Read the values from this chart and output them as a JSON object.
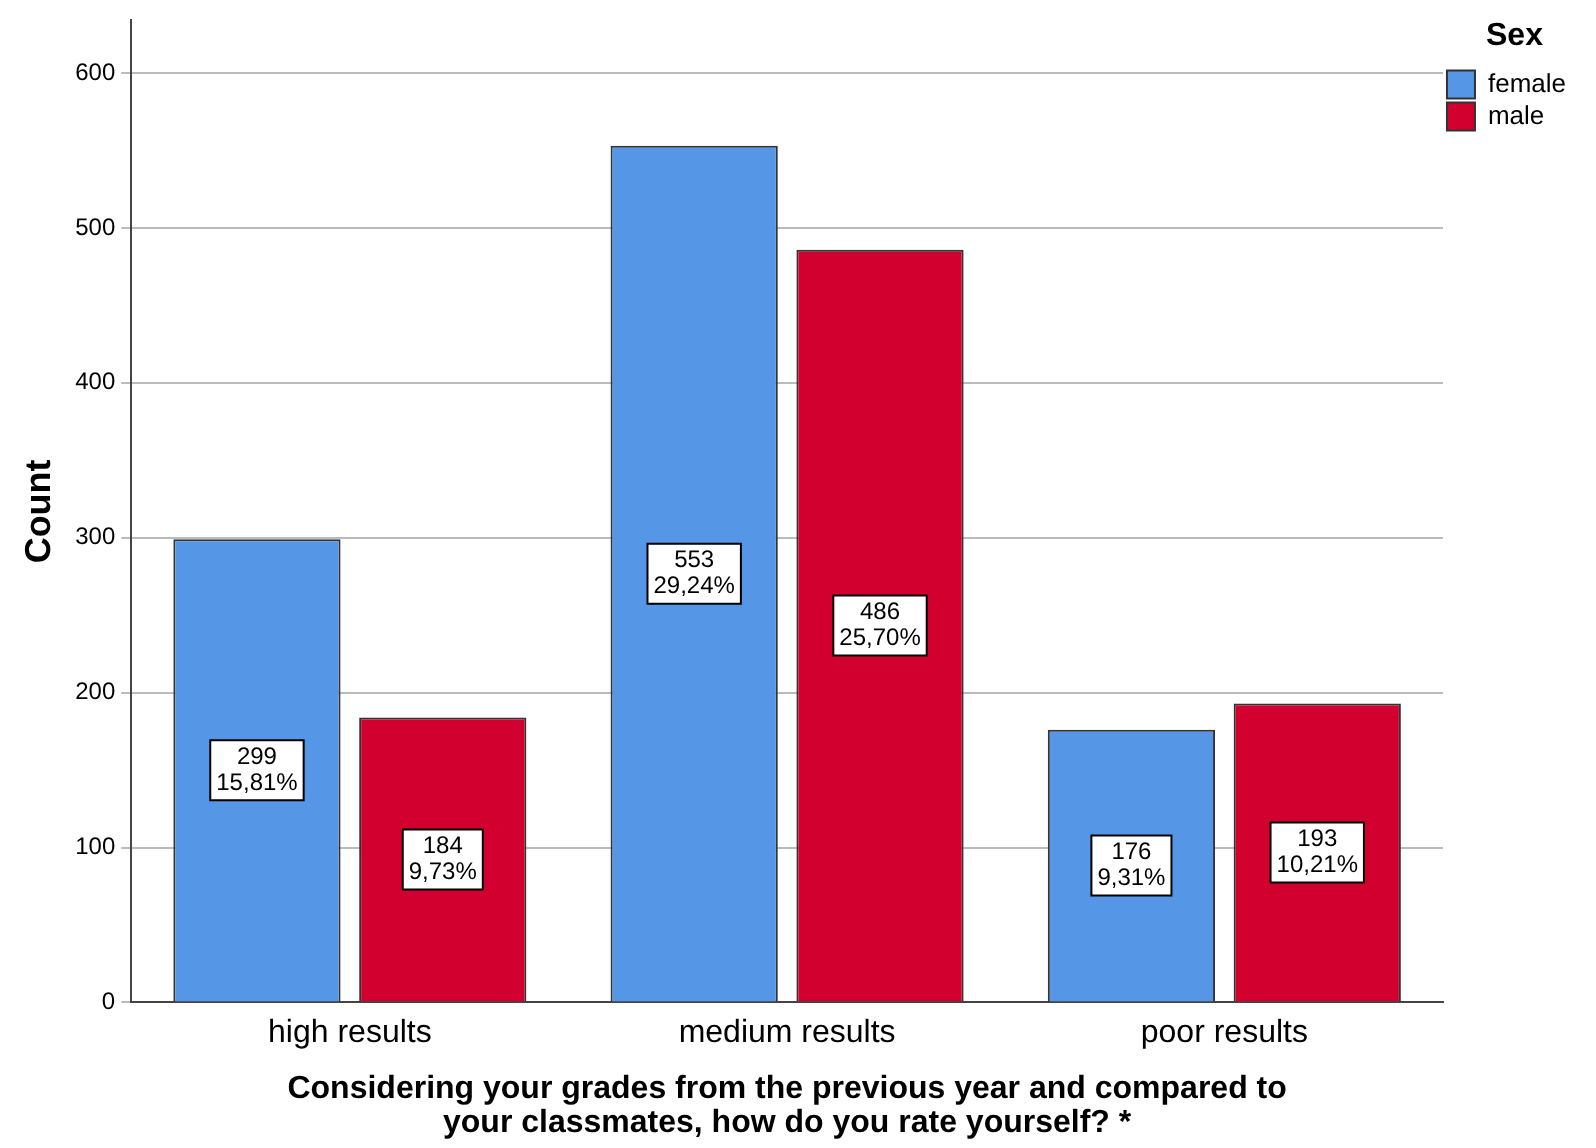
{
  "chart_data": {
    "type": "bar",
    "xlabel": "Considering your grades from the previous year and compared to your classmates, how do you rate yourself? *",
    "ylabel": "Count",
    "legend_title": "Sex",
    "categories": [
      "high results",
      "medium results",
      "poor results"
    ],
    "series": [
      {
        "name": "female",
        "color": "#5596e6",
        "values": [
          299,
          553,
          176
        ],
        "value_labels": [
          "299\n15,81%",
          "553\n29,24%",
          "176\n9,31%"
        ]
      },
      {
        "name": "male",
        "color": "#d2002e",
        "values": [
          184,
          486,
          193
        ],
        "value_labels": [
          "184\n9,73%",
          "486\n25,70%",
          "193\n10,21%"
        ]
      }
    ],
    "ylim": [
      0,
      634
    ],
    "yticks": [
      0,
      100,
      200,
      300,
      400,
      500,
      600
    ],
    "grid": "y",
    "legend": "top right"
  }
}
